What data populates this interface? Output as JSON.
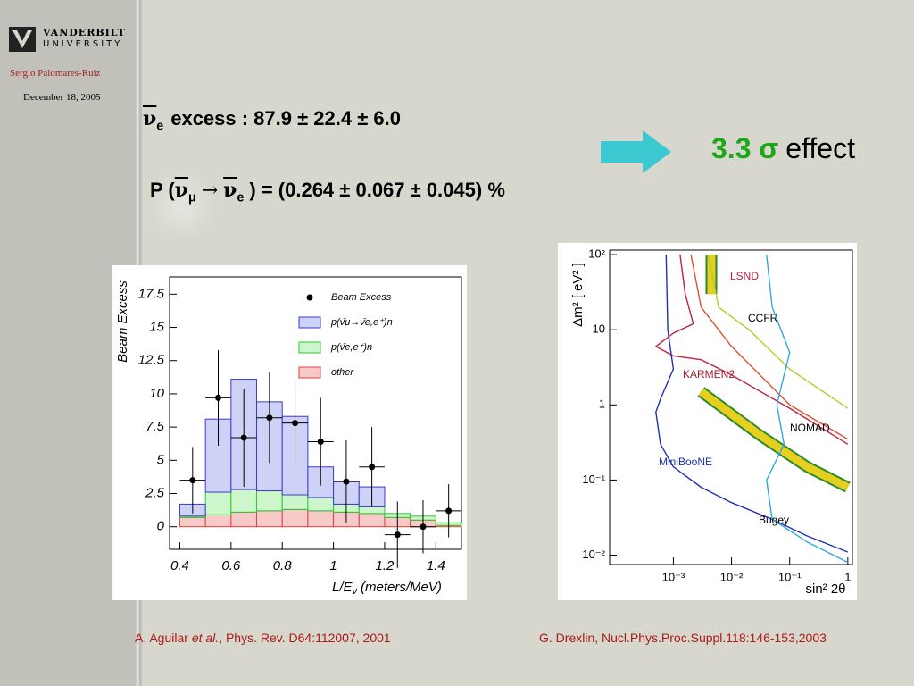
{
  "header": {
    "logo_line1": "VANDERBILT",
    "logo_line2": "UNIVERSITY",
    "author": "Sergio Palomares-Ruiz",
    "date": "December 18, 2005"
  },
  "excess": {
    "symbol": "ν",
    "subscript": "e",
    "text": "excess : 87.9 ± 22.4 ± 6.0"
  },
  "probability": {
    "prefix": "P (",
    "symbol1": "ν",
    "subscript1": "μ",
    "arrow": "→",
    "symbol2": "ν",
    "subscript2": "e",
    "text": ") = (0.264 ± 0.067 ± 0.045) %"
  },
  "effect": {
    "significance": "3.3 σ",
    "text": "effect"
  },
  "references": [
    {
      "authors": "A. Aguilar",
      "etal": "et al.",
      "rest": ", Phys. Rev. D64:112007, 2001"
    },
    {
      "text": "G. Drexlin, Nucl.Phys.Proc.Suppl.118:146-153,2003"
    }
  ],
  "chart_data": [
    {
      "type": "histogram",
      "y_label": "Beam Excess",
      "x_label": {
        "text": "L/E",
        "subscript": "ν",
        "unit": "(meters/MeV)"
      },
      "bins": [
        0.4,
        0.5,
        0.6,
        0.7,
        0.8,
        0.9,
        1.0,
        1.1,
        1.2,
        1.3,
        1.4,
        1.5
      ],
      "series": [
        {
          "name": "p(ν̄μ→ν̄e,e⁺)n",
          "color": "#3a3ad0",
          "values": [
            0.9,
            5.5,
            8.3,
            6.7,
            5.9,
            2.3,
            1.7,
            1.5,
            0.0,
            0.0,
            0.0
          ]
        },
        {
          "name": "p(ν̄e,e⁺)n",
          "color": "#2ec82e",
          "values": [
            0.1,
            1.7,
            1.7,
            1.5,
            1.1,
            1.0,
            0.6,
            0.5,
            0.3,
            0.3,
            0.2
          ]
        },
        {
          "name": "other",
          "color": "#e04040",
          "values": [
            0.7,
            0.9,
            1.1,
            1.2,
            1.3,
            1.2,
            1.1,
            1.0,
            0.7,
            0.5,
            0.1
          ]
        },
        {
          "name": "Beam Excess",
          "color": "#000000",
          "values": [
            3.5,
            9.7,
            6.7,
            8.2,
            7.8,
            6.4,
            3.4,
            4.5,
            -0.6,
            0,
            1.2
          ],
          "errors": [
            2.5,
            3.6,
            3.7,
            3.4,
            3.3,
            3.3,
            3.1,
            3.0,
            2.5,
            2.0,
            2.0
          ]
        }
      ],
      "xlim": [
        0.36,
        1.5
      ],
      "ylim": [
        -1.7,
        18.8
      ],
      "xticks": [
        0.4,
        0.6,
        0.8,
        1,
        1.2,
        1.4
      ],
      "yticks": [
        0,
        2.5,
        5,
        7.5,
        10,
        12.5,
        15,
        17.5
      ],
      "legend": "upper right"
    },
    {
      "type": "line",
      "y_label": "Δm² [ eV² ]",
      "x_label": "sin² 2θ",
      "xscale": "log",
      "yscale": "log",
      "xlim": [
        8e-05,
        1.2
      ],
      "ylim": [
        0.0075,
        115
      ],
      "xticks": [
        {
          "value": 0.001,
          "label": "10⁻³"
        },
        {
          "value": 0.01,
          "label": "10⁻²"
        },
        {
          "value": 0.1,
          "label": "10⁻¹"
        },
        1
      ],
      "yticks": [
        {
          "value": 0.01,
          "label": "10⁻²"
        },
        {
          "value": 0.1,
          "label": "10⁻¹"
        },
        1,
        10,
        {
          "value": 100,
          "label": "10²"
        }
      ],
      "series": [
        {
          "name": "LSND",
          "color": "#e6cf1e",
          "style": "band",
          "x": [
            0.0045,
            0.0045,
            null,
            0.003,
            0.03,
            0.2,
            1
          ],
          "y": [
            100,
            30,
            null,
            1.5,
            0.4,
            0.15,
            0.08
          ]
        },
        {
          "name": "CCFR",
          "color": "#b8c830",
          "x": [
            0.004,
            0.006,
            0.02,
            0.1,
            1
          ],
          "y": [
            100,
            20,
            10,
            3,
            0.9
          ]
        },
        {
          "name": "KARMEN2",
          "color": "#c02040",
          "x": [
            0.0013,
            0.0016,
            0.0022,
            0.001,
            0.0005,
            0.001,
            0.003,
            0.01,
            0.1,
            1
          ],
          "y": [
            100,
            30,
            12,
            9,
            6,
            4.5,
            4,
            2.5,
            0.9,
            0.3
          ]
        },
        {
          "name": "NOMAD",
          "color": "#e05030",
          "x": [
            0.002,
            0.003,
            0.01,
            0.1,
            1
          ],
          "y": [
            100,
            20,
            6,
            1,
            0.35
          ]
        },
        {
          "name": "MiniBooNE",
          "color": "#2030b0",
          "x": [
            0.00075,
            0.0008,
            0.001,
            0.0006,
            0.0005,
            0.0006,
            0.001,
            0.003,
            0.01,
            0.05,
            0.2,
            1
          ],
          "y": [
            100,
            10,
            3,
            1.2,
            0.8,
            0.3,
            0.15,
            0.08,
            0.05,
            0.03,
            0.018,
            0.011
          ]
        },
        {
          "name": "Bugey",
          "color": "#30a8e0",
          "x": [
            0.04,
            0.05,
            0.1,
            0.06,
            0.08,
            0.04,
            0.05,
            0.2,
            1
          ],
          "y": [
            100,
            20,
            5,
            1,
            0.3,
            0.1,
            0.03,
            0.015,
            0.008
          ]
        }
      ]
    }
  ]
}
